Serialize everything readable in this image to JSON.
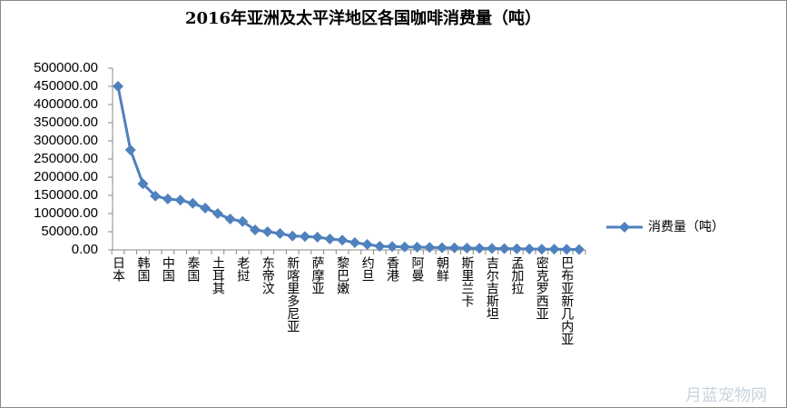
{
  "chart_data": {
    "type": "line",
    "title": "2016年亚洲及太平洋地区各国咖啡消费量（吨）",
    "categories": [
      "日本",
      null,
      "韩国",
      null,
      "中国",
      null,
      "泰国",
      null,
      "土耳其",
      null,
      "老挝",
      null,
      "东帝汶",
      null,
      "新喀里多尼亚",
      null,
      "萨摩亚",
      null,
      "黎巴嫩",
      null,
      "约旦",
      null,
      "香港",
      null,
      "阿曼",
      null,
      "朝鲜",
      null,
      "斯里兰卡",
      null,
      "吉尔吉斯坦",
      null,
      "孟加拉",
      null,
      "密克罗西亚",
      null,
      "巴布亚新几内亚",
      null
    ],
    "series": [
      {
        "name": "消费量（吨）",
        "color": "#4f81bd",
        "values": [
          450000,
          275000,
          182000,
          148000,
          140000,
          137000,
          128000,
          115000,
          100000,
          85000,
          78000,
          55000,
          50000,
          45000,
          38000,
          37000,
          35000,
          30000,
          27000,
          20000,
          15000,
          10000,
          9000,
          8000,
          7500,
          7000,
          6000,
          5500,
          5000,
          4500,
          4000,
          3500,
          3000,
          2500,
          2000,
          1800,
          1500,
          1000
        ]
      }
    ],
    "ylim": [
      0,
      500000
    ],
    "yticks": [
      {
        "value": 0,
        "label": "0.00"
      },
      {
        "value": 50000,
        "label": "50000.00"
      },
      {
        "value": 100000,
        "label": "100000.00"
      },
      {
        "value": 150000,
        "label": "150000.00"
      },
      {
        "value": 200000,
        "label": "200000.00"
      },
      {
        "value": 250000,
        "label": "250000.00"
      },
      {
        "value": 300000,
        "label": "300000.00"
      },
      {
        "value": 350000,
        "label": "350000.00"
      },
      {
        "value": 400000,
        "label": "400000.00"
      },
      {
        "value": 450000,
        "label": "450000.00"
      },
      {
        "value": 500000,
        "label": "500000.00"
      }
    ],
    "legend": "right",
    "grid": false
  },
  "watermark": "月蓝宠物网"
}
